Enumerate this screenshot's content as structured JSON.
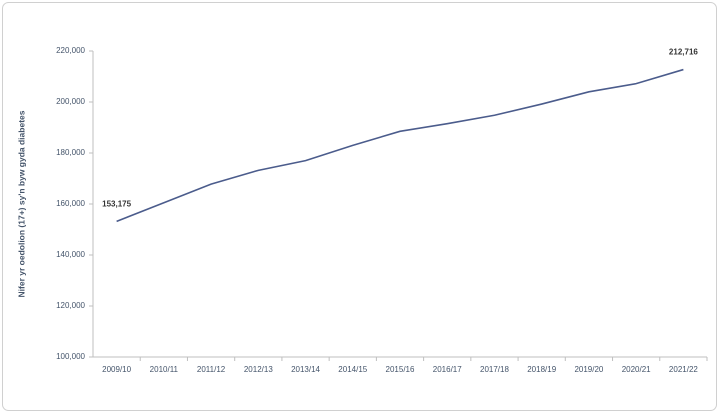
{
  "chart_data": {
    "type": "line",
    "y_label": "Nifer yr oedolion (17+) sy'n byw gyda diabetes",
    "categories": [
      "2009/10",
      "2010/11",
      "2011/12",
      "2012/13",
      "2013/14",
      "2014/15",
      "2015/16",
      "2016/17",
      "2017/18",
      "2018/19",
      "2019/20",
      "2020/21",
      "2021/22"
    ],
    "series": [
      {
        "color": "#4b5c8c",
        "values": [
          153175,
          160500,
          167800,
          173200,
          177000,
          183000,
          188500,
          191500,
          194800,
          199200,
          204000,
          207200,
          212716
        ],
        "value_labels": [
          "153,175",
          null,
          null,
          null,
          null,
          null,
          null,
          null,
          null,
          null,
          null,
          null,
          "212,716"
        ]
      }
    ],
    "ylim": [
      100000,
      220000
    ],
    "yticks": [
      {
        "value": 100000,
        "label": "100,000"
      },
      {
        "value": 120000,
        "label": "120,000"
      },
      {
        "value": 140000,
        "label": "140,000"
      },
      {
        "value": 160000,
        "label": "160,000"
      },
      {
        "value": 180000,
        "label": "180,000"
      },
      {
        "value": 200000,
        "label": "200,000"
      },
      {
        "value": 220000,
        "label": "220,000"
      }
    ],
    "grid": false
  }
}
